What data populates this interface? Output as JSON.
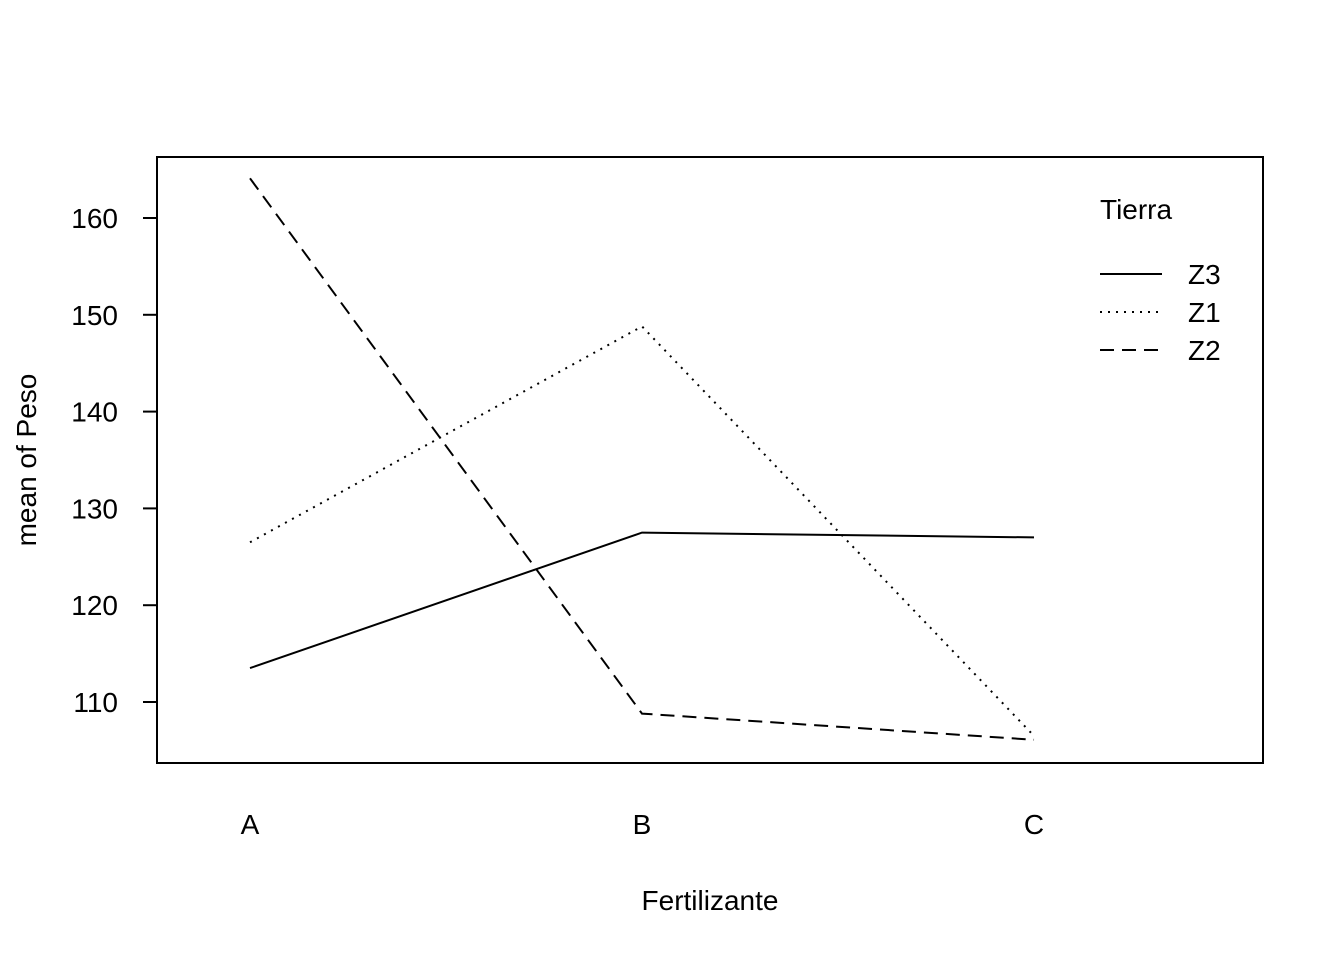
{
  "chart_data": {
    "type": "line",
    "title": "",
    "xlabel": "Fertilizante",
    "ylabel": "mean of  Peso",
    "categories": [
      "A",
      "B",
      "C"
    ],
    "ylim": [
      103.7,
      166.3
    ],
    "yticks": [
      110,
      120,
      130,
      140,
      150,
      160
    ],
    "grid": false,
    "legend": {
      "title": "Tierra",
      "position": "top-right",
      "entries": [
        "Z3",
        "Z1",
        "Z2"
      ]
    },
    "series": [
      {
        "name": "Z3",
        "values": [
          113.5,
          127.5,
          127.0
        ],
        "line_style": "solid"
      },
      {
        "name": "Z1",
        "values": [
          126.5,
          148.8,
          106.5
        ],
        "line_style": "dotted"
      },
      {
        "name": "Z2",
        "values": [
          164.1,
          108.8,
          106.1
        ],
        "line_style": "dashed"
      }
    ]
  }
}
